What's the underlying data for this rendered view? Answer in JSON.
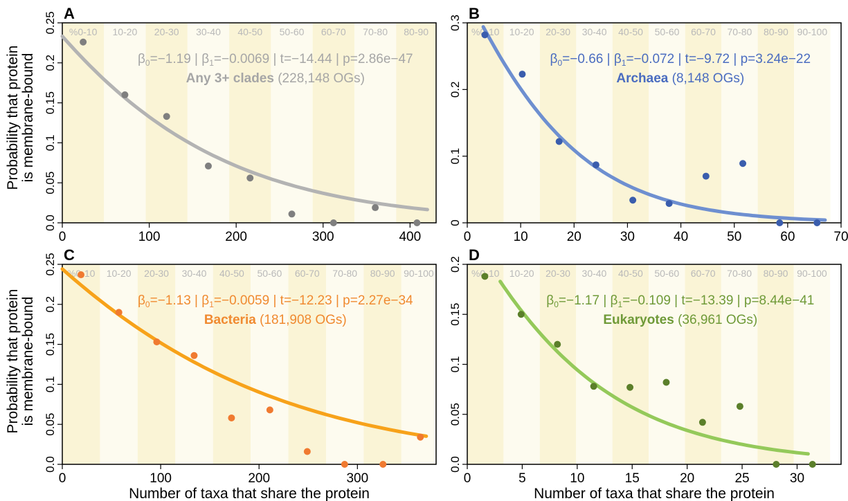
{
  "figure": {
    "ylabel_line1": "Probability that protein",
    "ylabel_line2": "is membrane-bound",
    "xlabel": "Number of taxa that share the protein"
  },
  "chart_data": [
    {
      "panel": "A",
      "type": "scatter",
      "title": "Any 3+ clades",
      "subtitle": "(228,148 OGs)",
      "stats": {
        "b0": "−1.19",
        "b1": "−0.0069",
        "t": "−14.44",
        "p": "2.86e−47"
      },
      "color_points": "#7f7f7f",
      "color_curve": "#b3b3b3",
      "color_text": "#a6a6a6",
      "xlim": [
        0,
        430
      ],
      "ylim": [
        0,
        0.25
      ],
      "xticks": [
        0,
        100,
        200,
        300,
        400
      ],
      "yticks": [
        0,
        0.05,
        0.1,
        0.15,
        0.2,
        0.25
      ],
      "ytick_labels": [
        "0.0",
        "0.05",
        "0.1",
        "0.15",
        "0.2",
        "0.25"
      ],
      "bands": [
        "%0-10",
        "10-20",
        "20-30",
        "30-40",
        "40-50",
        "50-60",
        "60-70",
        "70-80",
        "80-90"
      ],
      "band_width": 48,
      "points": {
        "x": [
          24,
          72,
          120,
          168,
          216,
          264,
          312,
          360,
          408
        ],
        "y": [
          0.226,
          0.16,
          0.133,
          0.071,
          0.056,
          0.011,
          0.0,
          0.019,
          0.0
        ]
      },
      "curve": {
        "b0": -1.19,
        "b1": -0.0069,
        "x_range": [
          0,
          420
        ]
      }
    },
    {
      "panel": "B",
      "type": "scatter",
      "title": "Archaea",
      "subtitle": "(8,148 OGs)",
      "stats": {
        "b0": "−0.66",
        "b1": "−0.072",
        "t": "−9.72",
        "p": "3.24e−22"
      },
      "color_points": "#3a5dad",
      "color_curve": "#6e8fd0",
      "color_text": "#4a6cc0",
      "xlim": [
        0,
        70
      ],
      "ylim": [
        0,
        0.3
      ],
      "xticks": [
        0,
        10,
        20,
        30,
        40,
        50,
        60,
        70
      ],
      "yticks": [
        0,
        0.1,
        0.2,
        0.3
      ],
      "ytick_labels": [
        "0",
        "0.1",
        "0.2",
        "0.3"
      ],
      "bands": [
        "%0-10",
        "10-20",
        "20-30",
        "30-40",
        "40-50",
        "50-60",
        "60-70",
        "70-80",
        "80-90",
        "90-100"
      ],
      "band_width": 6.8,
      "points": {
        "x": [
          3.3,
          10.3,
          17.2,
          24.1,
          31.0,
          37.8,
          44.7,
          51.6,
          58.5,
          65.5
        ],
        "y": [
          0.282,
          0.223,
          0.122,
          0.087,
          0.034,
          0.029,
          0.07,
          0.089,
          0.0,
          0.0
        ]
      },
      "curve": {
        "b0": -0.66,
        "b1": -0.072,
        "x_range": [
          3,
          67
        ]
      }
    },
    {
      "panel": "C",
      "type": "scatter",
      "title": "Bacteria",
      "subtitle": "(181,908 OGs)",
      "stats": {
        "b0": "−1.13",
        "b1": "−0.0059",
        "t": "−12.23",
        "p": "2.27e−34"
      },
      "color_points": "#f07a30",
      "color_curve": "#f7a21a",
      "color_text": "#f08a30",
      "xlim": [
        0,
        380
      ],
      "ylim": [
        0,
        0.25
      ],
      "xticks": [
        0,
        100,
        200,
        300
      ],
      "yticks": [
        0,
        0.05,
        0.1,
        0.15,
        0.2,
        0.25
      ],
      "ytick_labels": [
        "0.0",
        "0.05",
        "0.1",
        "0.15",
        "0.2",
        "0.25"
      ],
      "bands": [
        "%0-10",
        "10-20",
        "20-30",
        "30-40",
        "40-50",
        "50-60",
        "60-70",
        "70-80",
        "80-90",
        "90-100"
      ],
      "band_width": 38.3,
      "points": {
        "x": [
          19,
          57.5,
          96,
          134,
          172,
          211,
          249,
          287,
          326,
          364
        ],
        "y": [
          0.237,
          0.19,
          0.153,
          0.136,
          0.058,
          0.068,
          0.016,
          0.0,
          0.0,
          0.034
        ]
      },
      "curve": {
        "b0": -1.13,
        "b1": -0.0059,
        "x_range": [
          0,
          370
        ]
      }
    },
    {
      "panel": "D",
      "type": "scatter",
      "title": "Eukaryotes",
      "subtitle": "(36,961 OGs)",
      "stats": {
        "b0": "−1.17",
        "b1": "−0.109",
        "t": "−13.39",
        "p": "8.44e−41"
      },
      "color_points": "#5b7f2a",
      "color_curve": "#94c95a",
      "color_text": "#6f9a38",
      "xlim": [
        0,
        34
      ],
      "ylim": [
        0,
        0.2
      ],
      "xticks": [
        0,
        5,
        10,
        15,
        20,
        25,
        30
      ],
      "yticks": [
        0,
        0.05,
        0.1,
        0.15,
        0.2
      ],
      "ytick_labels": [
        "0.0",
        "0.05",
        "0.1",
        "0.15",
        "0.2"
      ],
      "bands": [
        "%0-10",
        "10-20",
        "20-30",
        "30-40",
        "40-50",
        "50-60",
        "60-70",
        "70-80",
        "80-90",
        "90-100"
      ],
      "band_width": 3.3,
      "points": {
        "x": [
          1.6,
          4.9,
          8.2,
          11.5,
          14.8,
          18.1,
          21.4,
          24.8,
          28.1,
          31.4
        ],
        "y": [
          0.188,
          0.15,
          0.12,
          0.078,
          0.077,
          0.082,
          0.042,
          0.058,
          0.0,
          0.0
        ]
      },
      "curve": {
        "b0": -1.17,
        "b1": -0.109,
        "x_range": [
          3,
          31
        ]
      }
    }
  ]
}
